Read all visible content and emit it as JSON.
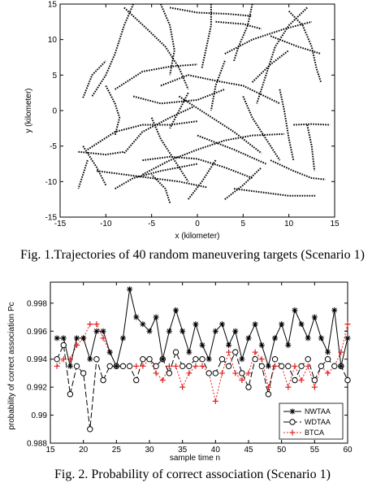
{
  "chart_data": [
    {
      "type": "line",
      "caption": "Fig. 1.Trajectories of 40 random maneuvering targets (Scenario 1)",
      "xlabel": "x (kilometer)",
      "ylabel": "y (kilometer)",
      "xlim": [
        -15,
        15
      ],
      "ylim": [
        -15,
        15
      ],
      "xticks": [
        -15,
        -10,
        -5,
        0,
        5,
        10,
        15
      ],
      "yticks": [
        -15,
        -10,
        -5,
        0,
        5,
        10,
        15
      ],
      "xtick_labels": [
        "-15",
        "-10",
        "-5",
        "0",
        "5",
        "10",
        "15"
      ],
      "ytick_labels": [
        "-15",
        "-10",
        "-5",
        "0",
        "5",
        "10",
        "15"
      ],
      "grid": false,
      "series": [
        {
          "points": [
            [
              -8,
              14.5
            ],
            [
              -5.5,
              11.5
            ],
            [
              -3.5,
              9
            ],
            [
              -2,
              6
            ],
            [
              -1,
              3
            ]
          ]
        },
        {
          "points": [
            [
              -7,
              15
            ],
            [
              -8,
              12
            ],
            [
              -9,
              8
            ],
            [
              -10,
              5
            ],
            [
              -11.5,
              2
            ]
          ]
        },
        {
          "points": [
            [
              -4,
              15
            ],
            [
              -3,
              12
            ],
            [
              -2.5,
              8.5
            ],
            [
              -3,
              5
            ]
          ]
        },
        {
          "points": [
            [
              -3,
              14.5
            ],
            [
              0,
              13.8
            ],
            [
              3.5,
              13.6
            ],
            [
              6,
              13.3
            ]
          ]
        },
        {
          "points": [
            [
              1.5,
              15
            ],
            [
              1.5,
              12
            ],
            [
              1,
              9
            ],
            [
              0.5,
              6
            ]
          ]
        },
        {
          "points": [
            [
              2,
              12.5
            ],
            [
              5,
              12.2
            ],
            [
              7,
              11.5
            ]
          ]
        },
        {
          "points": [
            [
              3,
              8
            ],
            [
              6,
              10
            ],
            [
              9.5,
              11.5
            ],
            [
              12.5,
              12.5
            ]
          ]
        },
        {
          "points": [
            [
              8,
              10.5
            ],
            [
              11,
              9
            ],
            [
              13.5,
              8
            ]
          ]
        },
        {
          "points": [
            [
              6,
              15
            ],
            [
              5.5,
              12
            ],
            [
              4.5,
              9
            ],
            [
              4,
              7
            ]
          ]
        },
        {
          "points": [
            [
              10,
              14
            ],
            [
              11.5,
              12
            ],
            [
              12.5,
              9
            ],
            [
              13,
              6
            ],
            [
              13.5,
              4
            ]
          ]
        },
        {
          "points": [
            [
              12,
              14.5
            ],
            [
              10,
              12
            ],
            [
              8.5,
              9
            ],
            [
              7.5,
              5
            ],
            [
              6.5,
              1
            ]
          ]
        },
        {
          "points": [
            [
              -12.5,
              1.8
            ],
            [
              -11.5,
              5
            ],
            [
              -10,
              7
            ]
          ]
        },
        {
          "points": [
            [
              -9,
              3
            ],
            [
              -6,
              5.5
            ],
            [
              -3,
              6.2
            ],
            [
              0,
              6.5
            ]
          ]
        },
        {
          "points": [
            [
              -4,
              3.5
            ],
            [
              -1,
              5
            ],
            [
              2,
              4.2
            ],
            [
              5,
              3.5
            ],
            [
              9,
              1
            ]
          ]
        },
        {
          "points": [
            [
              -7,
              2
            ],
            [
              -4,
              1
            ],
            [
              0,
              1.5
            ],
            [
              3,
              3
            ]
          ]
        },
        {
          "points": [
            [
              -12,
              -5.5
            ],
            [
              -9,
              -3
            ],
            [
              -6,
              -2
            ],
            [
              -3,
              -2
            ],
            [
              0,
              -1.5
            ]
          ]
        },
        {
          "points": [
            [
              -8,
              -6
            ],
            [
              -6,
              -3
            ],
            [
              -3,
              -1
            ],
            [
              -0.5,
              0.5
            ]
          ]
        },
        {
          "points": [
            [
              -13,
              -5.8
            ],
            [
              -10,
              -6.2
            ],
            [
              -8,
              -5.8
            ]
          ]
        },
        {
          "points": [
            [
              -12.5,
              -5
            ],
            [
              -11,
              -8
            ],
            [
              -10,
              -10.5
            ]
          ]
        },
        {
          "points": [
            [
              -5,
              -1
            ],
            [
              -4,
              -4
            ],
            [
              -2.5,
              -7
            ],
            [
              -1,
              -10
            ]
          ]
        },
        {
          "points": [
            [
              -6,
              -9
            ],
            [
              -3,
              -7
            ],
            [
              0,
              -5.5
            ],
            [
              3,
              -4.2
            ],
            [
              6,
              -3.5
            ],
            [
              9.5,
              -3.3
            ]
          ]
        },
        {
          "points": [
            [
              -6,
              -7
            ],
            [
              -3,
              -6.5
            ],
            [
              0,
              -6.8
            ],
            [
              3,
              -8
            ],
            [
              6,
              -9.5
            ]
          ]
        },
        {
          "points": [
            [
              -11,
              -8.5
            ],
            [
              -8,
              -9
            ],
            [
              -5,
              -9.5
            ],
            [
              -2,
              -10
            ],
            [
              1,
              -10.8
            ]
          ]
        },
        {
          "points": [
            [
              -9,
              -11
            ],
            [
              -7,
              -9.5
            ],
            [
              -4,
              -8.5
            ],
            [
              0,
              -7.5
            ]
          ]
        },
        {
          "points": [
            [
              -3,
              -13
            ],
            [
              -3.5,
              -11
            ],
            [
              -5,
              -9
            ]
          ]
        },
        {
          "points": [
            [
              2,
              -7
            ],
            [
              0.5,
              -10
            ],
            [
              -1,
              -12.5
            ]
          ]
        },
        {
          "points": [
            [
              3,
              -12.5
            ],
            [
              5,
              -10.5
            ],
            [
              7,
              -8
            ]
          ]
        },
        {
          "points": [
            [
              4,
              -11
            ],
            [
              7,
              -11.5
            ],
            [
              10,
              -12
            ],
            [
              13,
              -12
            ]
          ]
        },
        {
          "points": [
            [
              -2,
              2
            ],
            [
              1,
              -0.5
            ],
            [
              4,
              -3
            ],
            [
              7,
              -6
            ]
          ]
        },
        {
          "points": [
            [
              5,
              2
            ],
            [
              6,
              -1
            ],
            [
              7.5,
              -4
            ],
            [
              9,
              -7
            ]
          ]
        },
        {
          "points": [
            [
              9,
              3
            ],
            [
              9.5,
              0
            ],
            [
              10,
              -4
            ],
            [
              10.5,
              -7
            ]
          ]
        },
        {
          "points": [
            [
              12,
              -2
            ],
            [
              12.5,
              -5
            ],
            [
              12.8,
              -8.5
            ]
          ]
        },
        {
          "points": [
            [
              10.5,
              -2
            ],
            [
              12.5,
              -1.9
            ],
            [
              14.5,
              -2
            ]
          ]
        },
        {
          "points": [
            [
              8,
              -7
            ],
            [
              10.5,
              -8.5
            ],
            [
              12.5,
              -9.5
            ],
            [
              14,
              -9.7
            ]
          ]
        },
        {
          "points": [
            [
              -1,
              2.5
            ],
            [
              -2,
              0
            ],
            [
              -3,
              -2.5
            ]
          ]
        },
        {
          "points": [
            [
              -10,
              3.5
            ],
            [
              -9,
              1
            ],
            [
              -8.5,
              -1
            ],
            [
              -9,
              -3.5
            ]
          ]
        },
        {
          "points": [
            [
              3,
              7
            ],
            [
              2,
              3.5
            ],
            [
              1.5,
              0
            ]
          ]
        },
        {
          "points": [
            [
              6,
              4
            ],
            [
              8,
              6.5
            ],
            [
              10,
              8.5
            ]
          ]
        },
        {
          "points": [
            [
              0,
              -3.5
            ],
            [
              4,
              -5.5
            ],
            [
              7.5,
              -7.5
            ]
          ]
        },
        {
          "points": [
            [
              -12,
              -7
            ],
            [
              -12.5,
              -9
            ],
            [
              -13,
              -11
            ]
          ]
        }
      ]
    },
    {
      "type": "line",
      "caption": "Fig. 2. Probability of correct association (Scenario 1)",
      "xlabel": "sample time n",
      "ylabel": "probability of correct association Pc",
      "xlim": [
        15,
        60
      ],
      "ylim": [
        0.988,
        0.9995
      ],
      "xticks": [
        15,
        20,
        25,
        30,
        35,
        40,
        45,
        50,
        55,
        60
      ],
      "yticks": [
        0.988,
        0.99,
        0.992,
        0.994,
        0.996,
        0.998
      ],
      "xtick_labels": [
        "15",
        "20",
        "25",
        "30",
        "35",
        "40",
        "45",
        "50",
        "55",
        "60"
      ],
      "ytick_labels": [
        "0.988",
        "0.99",
        "0.992",
        "0.994",
        "0.996",
        "0.998"
      ],
      "grid": false,
      "legend_position": "bottom-right",
      "x": [
        16,
        17,
        18,
        19,
        20,
        21,
        22,
        23,
        24,
        25,
        26,
        27,
        28,
        29,
        30,
        31,
        32,
        33,
        34,
        35,
        36,
        37,
        38,
        39,
        40,
        41,
        42,
        43,
        44,
        45,
        46,
        47,
        48,
        49,
        50,
        51,
        52,
        53,
        54,
        55,
        56,
        57,
        58,
        59,
        60
      ],
      "series": [
        {
          "name": "NWTAA",
          "color": "#000000",
          "dash": "solid",
          "marker": "star",
          "values": [
            0.9955,
            0.9955,
            0.9935,
            0.9955,
            0.9955,
            0.994,
            0.996,
            0.996,
            0.9945,
            0.9935,
            0.9955,
            0.999,
            0.997,
            0.9965,
            0.996,
            0.997,
            0.994,
            0.996,
            0.9975,
            0.996,
            0.9945,
            0.9965,
            0.995,
            0.994,
            0.996,
            0.9965,
            0.995,
            0.996,
            0.994,
            0.9955,
            0.9965,
            0.995,
            0.9935,
            0.9955,
            0.9965,
            0.995,
            0.9975,
            0.9965,
            0.9955,
            0.997,
            0.9955,
            0.9945,
            0.9975,
            0.9935,
            0.9955
          ]
        },
        {
          "name": "WDTAA",
          "color": "#000000",
          "dash": "long-dash",
          "marker": "circle",
          "values": [
            0.994,
            0.995,
            0.9915,
            0.9935,
            0.993,
            0.989,
            0.994,
            0.9925,
            0.9935,
            0.9935,
            0.9935,
            0.9935,
            0.9925,
            0.994,
            0.994,
            0.9935,
            0.994,
            0.993,
            0.9945,
            0.9935,
            0.9935,
            0.994,
            0.994,
            0.993,
            0.993,
            0.994,
            0.9935,
            0.9945,
            0.993,
            0.992,
            0.994,
            0.9935,
            0.9915,
            0.994,
            0.9935,
            0.9935,
            0.9925,
            0.9935,
            0.994,
            0.9925,
            0.9935,
            0.994,
            0.9935,
            0.9935,
            0.9925
          ]
        },
        {
          "name": "BTCA",
          "color": "#e02020",
          "dash": "dotted",
          "marker": "plus",
          "values": [
            0.9935,
            0.994,
            0.994,
            0.995,
            0.9955,
            0.9965,
            0.9965,
            0.9955,
            0.9945,
            0.9935,
            0.9935,
            0.9935,
            0.9935,
            0.9935,
            0.994,
            0.993,
            0.9925,
            0.9935,
            0.9935,
            0.992,
            0.993,
            0.9935,
            0.9935,
            0.993,
            0.991,
            0.993,
            0.9945,
            0.993,
            0.9925,
            0.993,
            0.9945,
            0.994,
            0.992,
            0.9935,
            0.9935,
            0.992,
            0.9935,
            0.9925,
            0.9935,
            0.992,
            0.9935,
            0.993,
            0.9935,
            0.9945,
            0.9965
          ]
        }
      ]
    }
  ]
}
